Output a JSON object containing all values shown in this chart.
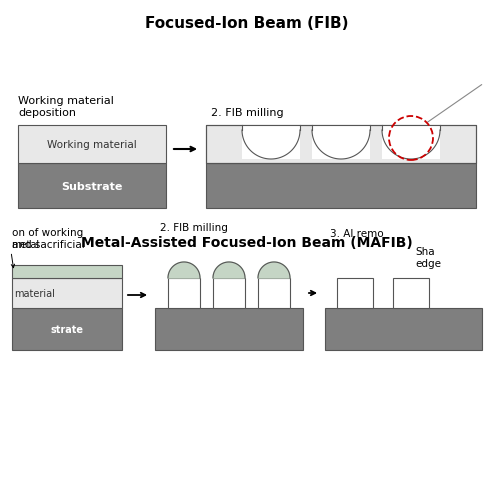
{
  "title_fib": "Focused-Ion Beam (FIB)",
  "title_mafib": "Metal-Assisted Focused-Ion Beam (MAFIB)",
  "bg_color": "#ffffff",
  "substrate_color": "#7f7f7f",
  "working_material_color": "#e8e8e8",
  "sacrificial_metal_color": "#c5d5c5",
  "outline_color": "#555555",
  "text_color": "#000000",
  "label_fib_step1": "Working material\ndeposition",
  "label_fib_step2": "2. FIB milling",
  "label_mafib_step1": "1. on of working\n   and sacrificial",
  "label_mafib_step2": "2. FIB milling",
  "label_mafib_step3": "3. Al remo",
  "label_working_material": "Working material",
  "label_substrate": "Substrate",
  "label_metal": "metal",
  "label_material": "material",
  "label_substrate2": "strate",
  "label_sharp": "Sha\nedge",
  "red_circle_color": "#cc0000"
}
